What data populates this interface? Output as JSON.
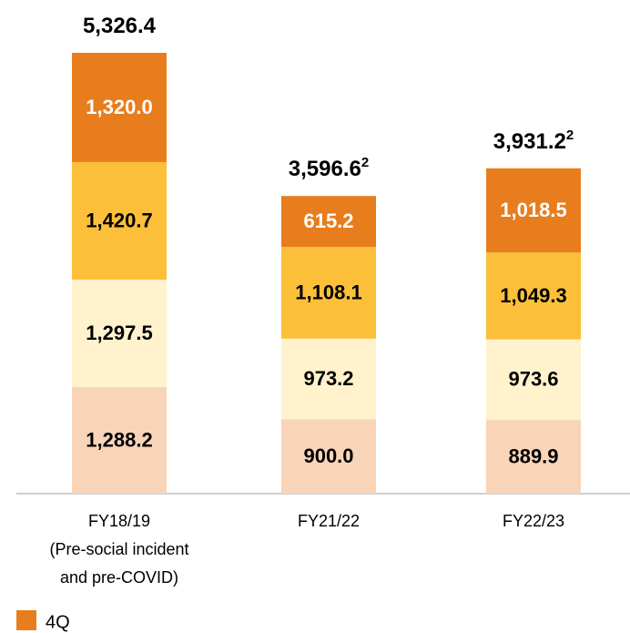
{
  "chart_data": {
    "type": "stacked_bar",
    "categories": [
      "FY18/19\n(Pre-social incident\nand pre-COVID)",
      "FY21/22",
      "FY22/23"
    ],
    "series": [
      {
        "color": "#f8d5b8",
        "label_color": "#000000",
        "values": [
          1288.2,
          900.0,
          889.9
        ],
        "value_labels": [
          "1,288.2",
          "900.0",
          "889.9"
        ]
      },
      {
        "color": "#fff2cc",
        "label_color": "#000000",
        "values": [
          1297.5,
          973.2,
          973.6
        ],
        "value_labels": [
          "1,297.5",
          "973.2",
          "973.6"
        ]
      },
      {
        "color": "#fbbf3a",
        "label_color": "#000000",
        "values": [
          1420.7,
          1108.1,
          1049.3
        ],
        "value_labels": [
          "1,420.7",
          "1,108.1",
          "1,049.3"
        ]
      },
      {
        "name": "4Q",
        "color": "#e87d1e",
        "label_color": "#ffffff",
        "values": [
          1320.0,
          615.2,
          1018.5
        ],
        "value_labels": [
          "1,320.0",
          "615.2",
          "1,018.5"
        ]
      }
    ],
    "totals": [
      5326.4,
      3596.6,
      3931.2
    ],
    "total_labels": [
      "5,326.4",
      "3,596.6",
      "3,931.2"
    ],
    "total_notes": [
      null,
      "2",
      "2"
    ]
  }
}
